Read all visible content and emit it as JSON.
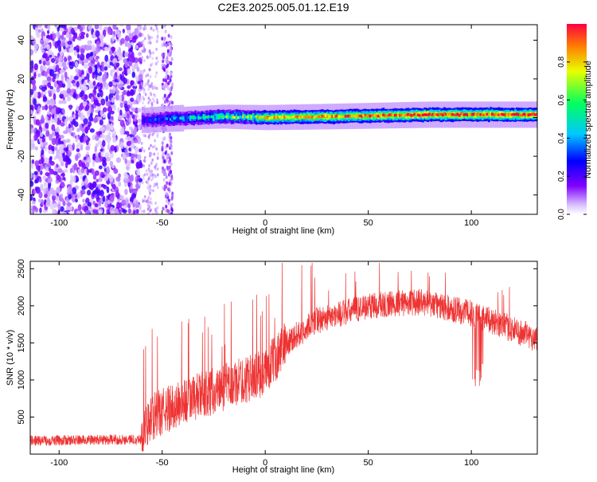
{
  "figure": {
    "title": "C2E3.2025.005.01.12.E19"
  },
  "colors": {
    "snr_line": "#ee3333",
    "colormap": [
      "#ffffff",
      "#c8a8ff",
      "#6a00ff",
      "#0000ff",
      "#00c8ff",
      "#00ff80",
      "#ffff00",
      "#ff0000"
    ]
  },
  "chart_data": [
    {
      "type": "heatmap",
      "xlabel": "Height of straight line (km)",
      "ylabel": "Frequency (Hz)",
      "xlim": [
        -114,
        132
      ],
      "ylim": [
        -50,
        48
      ],
      "xticks": [
        -100,
        -50,
        0,
        50,
        100
      ],
      "yticks": [
        -40,
        -20,
        0,
        20,
        40
      ],
      "colorbar": {
        "label": "Normalized spectral amplitude",
        "range": [
          0.0,
          1.0
        ],
        "ticks": [
          0.0,
          0.2,
          0.4,
          0.6,
          0.8
        ]
      },
      "noise_region_x": [
        -114,
        -60
      ],
      "noise_band_x": [
        -50,
        -45
      ],
      "signal_line": [
        {
          "x": -60,
          "y": -1.5,
          "amp": 0.25
        },
        {
          "x": -45,
          "y": -0.5,
          "amp": 0.4
        },
        {
          "x": -20,
          "y": 0.5,
          "amp": 0.6
        },
        {
          "x": 0,
          "y": 0,
          "amp": 0.75
        },
        {
          "x": 30,
          "y": 0.5,
          "amp": 0.8
        },
        {
          "x": 80,
          "y": 1.5,
          "amp": 0.9
        },
        {
          "x": 132,
          "y": 1.5,
          "amp": 0.9
        }
      ]
    },
    {
      "type": "line",
      "xlabel": "Height of straight line (km)",
      "ylabel": "SNR (10 * v/v)",
      "xlim": [
        -114,
        132
      ],
      "ylim": [
        0,
        2600
      ],
      "xticks": [
        -100,
        -50,
        0,
        50,
        100
      ],
      "yticks": [
        500,
        1000,
        1500,
        2000,
        2500
      ],
      "envelope": [
        {
          "x": -114,
          "y": 180
        },
        {
          "x": -60,
          "y": 200
        },
        {
          "x": -55,
          "y": 500
        },
        {
          "x": -40,
          "y": 700
        },
        {
          "x": -20,
          "y": 900
        },
        {
          "x": 0,
          "y": 1100
        },
        {
          "x": 10,
          "y": 1500
        },
        {
          "x": 25,
          "y": 1800
        },
        {
          "x": 50,
          "y": 2000
        },
        {
          "x": 75,
          "y": 2050
        },
        {
          "x": 100,
          "y": 1900
        },
        {
          "x": 132,
          "y": 1550
        }
      ]
    }
  ]
}
